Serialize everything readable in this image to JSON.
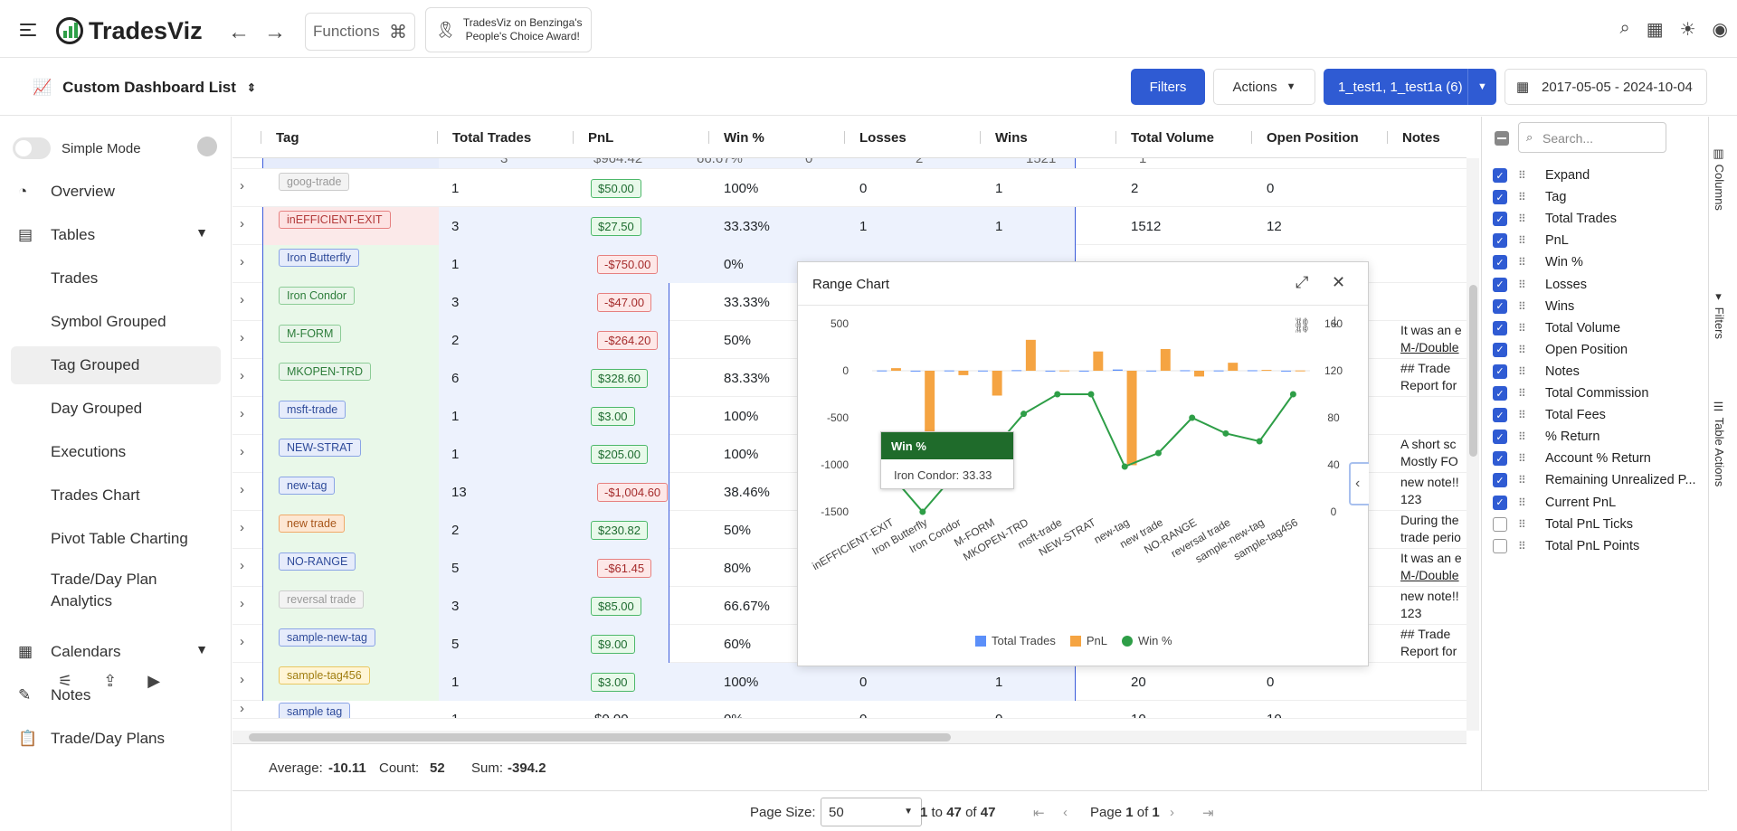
{
  "app": {
    "name": "TradesViz"
  },
  "topbar": {
    "functions_label": "Functions",
    "award_line1": "TradesViz on Benzinga's",
    "award_line2": "People's Choice Award!"
  },
  "subbar": {
    "title": "Custom Dashboard List",
    "filters_label": "Filters",
    "actions_label": "Actions",
    "account_label": "1_test1, 1_test1a (6)",
    "date_range": "2017-05-05 - 2024-10-04"
  },
  "sidebar": {
    "simple_mode": "Simple Mode",
    "items": [
      {
        "label": "Overview"
      },
      {
        "label": "Tables"
      },
      {
        "label": "Trades"
      },
      {
        "label": "Symbol Grouped"
      },
      {
        "label": "Tag Grouped"
      },
      {
        "label": "Day Grouped"
      },
      {
        "label": "Executions"
      },
      {
        "label": "Trades Chart"
      },
      {
        "label": "Pivot Table Charting"
      },
      {
        "label": "Trade/Day Plan"
      },
      {
        "label": "Analytics"
      },
      {
        "label": "Calendars"
      },
      {
        "label": "Notes"
      },
      {
        "label": "Trade/Day Plans"
      }
    ]
  },
  "grid": {
    "columns": [
      "Tag",
      "Total Trades",
      "PnL",
      "Win %",
      "Losses",
      "Wins",
      "Total Volume",
      "Open Position",
      "Notes"
    ],
    "partial_top": {
      "trades": "3",
      "pnl": "$964.42",
      "win": "66.67%",
      "losses": "0",
      "wins": "2",
      "volume": "1521",
      "open": "1"
    },
    "rows": [
      {
        "tag": "goog-trade",
        "trades": "1",
        "pnl": "$50.00",
        "win": "100%",
        "losses": "0",
        "wins": "1",
        "volume": "2",
        "open": "0",
        "notes1": "",
        "notes2": ""
      },
      {
        "tag": "inEFFICIENT-EXIT",
        "trades": "3",
        "pnl": "$27.50",
        "win": "33.33%",
        "losses": "1",
        "wins": "1",
        "volume": "1512",
        "open": "12",
        "notes1": "",
        "notes2": ""
      },
      {
        "tag": "Iron Butterfly",
        "trades": "1",
        "pnl": "-$750.00",
        "win": "0%",
        "losses": "",
        "wins": "",
        "volume": "",
        "open": "",
        "notes1": "",
        "notes2": ""
      },
      {
        "tag": "Iron Condor",
        "trades": "3",
        "pnl": "-$47.00",
        "win": "33.33%",
        "losses": "",
        "wins": "",
        "volume": "",
        "open": "",
        "notes1": "",
        "notes2": ""
      },
      {
        "tag": "M-FORM",
        "trades": "2",
        "pnl": "-$264.20",
        "win": "50%",
        "losses": "",
        "wins": "",
        "volume": "",
        "open": "",
        "notes1": "It was an e",
        "notes2": "M-/Double"
      },
      {
        "tag": "MKOPEN-TRD",
        "trades": "6",
        "pnl": "$328.60",
        "win": "83.33%",
        "losses": "",
        "wins": "",
        "volume": "",
        "open": "",
        "notes1": "## Trade",
        "notes2": "Report for"
      },
      {
        "tag": "msft-trade",
        "trades": "1",
        "pnl": "$3.00",
        "win": "100%",
        "losses": "",
        "wins": "",
        "volume": "",
        "open": "",
        "notes1": "",
        "notes2": ""
      },
      {
        "tag": "NEW-STRAT",
        "trades": "1",
        "pnl": "$205.00",
        "win": "100%",
        "losses": "",
        "wins": "",
        "volume": "",
        "open": "",
        "notes1": "A short sc",
        "notes2": "Mostly FO"
      },
      {
        "tag": "new-tag",
        "trades": "13",
        "pnl": "-$1,004.60",
        "win": "38.46%",
        "losses": "",
        "wins": "",
        "volume": "",
        "open": "",
        "notes1": "new note!!",
        "notes2": "123"
      },
      {
        "tag": "new trade",
        "trades": "2",
        "pnl": "$230.82",
        "win": "50%",
        "losses": "",
        "wins": "",
        "volume": "",
        "open": "",
        "notes1": "During the",
        "notes2": "trade perio"
      },
      {
        "tag": "NO-RANGE",
        "trades": "5",
        "pnl": "-$61.45",
        "win": "80%",
        "losses": "",
        "wins": "",
        "volume": "",
        "open": "",
        "notes1": "It was an e",
        "notes2": "M-/Double"
      },
      {
        "tag": "reversal trade",
        "trades": "3",
        "pnl": "$85.00",
        "win": "66.67%",
        "losses": "",
        "wins": "",
        "volume": "",
        "open": "",
        "notes1": "new note!!",
        "notes2": "123"
      },
      {
        "tag": "sample-new-tag",
        "trades": "5",
        "pnl": "$9.00",
        "win": "60%",
        "losses": "",
        "wins": "",
        "volume": "",
        "open": "",
        "notes1": "## Trade",
        "notes2": "Report for"
      },
      {
        "tag": "sample-tag456",
        "trades": "1",
        "pnl": "$3.00",
        "win": "100%",
        "losses": "0",
        "wins": "1",
        "volume": "20",
        "open": "0",
        "notes1": "",
        "notes2": ""
      }
    ],
    "partial_bottom": {
      "tag": "sample tag",
      "trades": "1",
      "pnl": "$0.00",
      "win": "0%",
      "losses": "0",
      "wins": "0",
      "volume": "10",
      "open": "10"
    }
  },
  "status": {
    "avg_label": "Average:",
    "avg": "-10.11",
    "count_label": "Count:",
    "count": "52",
    "sum_label": "Sum:",
    "sum": "-394.2"
  },
  "pager": {
    "size_label": "Page Size:",
    "size": "50",
    "from": "1",
    "to_word": "to",
    "to": "47",
    "of_word": "of",
    "total": "47",
    "page_word": "Page",
    "page": "1",
    "pages": "1"
  },
  "column_panel": {
    "search_placeholder": "Search...",
    "items": [
      {
        "label": "Expand",
        "checked": true
      },
      {
        "label": "Tag",
        "checked": true
      },
      {
        "label": "Total Trades",
        "checked": true
      },
      {
        "label": "PnL",
        "checked": true
      },
      {
        "label": "Win %",
        "checked": true
      },
      {
        "label": "Losses",
        "checked": true
      },
      {
        "label": "Wins",
        "checked": true
      },
      {
        "label": "Total Volume",
        "checked": true
      },
      {
        "label": "Open Position",
        "checked": true
      },
      {
        "label": "Notes",
        "checked": true
      },
      {
        "label": "Total Commission",
        "checked": true
      },
      {
        "label": "Total Fees",
        "checked": true
      },
      {
        "label": "% Return",
        "checked": true
      },
      {
        "label": "Account % Return",
        "checked": true
      },
      {
        "label": "Remaining Unrealized P...",
        "checked": true
      },
      {
        "label": "Current PnL",
        "checked": true
      },
      {
        "label": "Total PnL Ticks",
        "checked": false
      },
      {
        "label": "Total PnL Points",
        "checked": false
      }
    ],
    "tabs": [
      "Columns",
      "Filters",
      "Table Actions"
    ]
  },
  "modal": {
    "title": "Range Chart",
    "tooltip_title": "Win %",
    "tooltip_text": "Iron Condor: 33.33"
  },
  "colors": {
    "accent": "#2f5bd3",
    "total_trades": "#5b8ff9",
    "pnl": "#f5a442",
    "win": "#2e9e47"
  },
  "chart_data": {
    "type": "bar",
    "categories": [
      "inEFFICIENT-EXIT",
      "Iron Butterfly",
      "Iron Condor",
      "M-FORM",
      "MKOPEN-TRD",
      "msft-trade",
      "NEW-STRAT",
      "new-tag",
      "new trade",
      "NO-RANGE",
      "reversal trade",
      "sample-new-tag",
      "sample-tag456"
    ],
    "series": [
      {
        "name": "Total Trades",
        "axis": "left",
        "kind": "bar",
        "values": [
          3,
          1,
          3,
          2,
          6,
          1,
          1,
          13,
          2,
          5,
          3,
          5,
          1
        ]
      },
      {
        "name": "PnL",
        "axis": "left",
        "kind": "bar",
        "values": [
          27.5,
          -750,
          -47,
          -264.2,
          328.6,
          3,
          205,
          -1004.6,
          230.82,
          -61.45,
          85,
          9,
          3
        ]
      },
      {
        "name": "Win %",
        "axis": "right",
        "kind": "line",
        "values": [
          33.33,
          0,
          33.33,
          50,
          83.33,
          100,
          100,
          38.46,
          50,
          80,
          66.67,
          60,
          100
        ]
      }
    ],
    "ylim_left": [
      -1500,
      500
    ],
    "yticks_left": [
      "500",
      "0",
      "-500",
      "-1000",
      "-1500"
    ],
    "ylim_right": [
      0,
      160
    ],
    "yticks_right": [
      "160",
      "120",
      "80",
      "40",
      "0"
    ],
    "legend": [
      "Total Trades",
      "PnL",
      "Win %"
    ],
    "grid": false
  }
}
